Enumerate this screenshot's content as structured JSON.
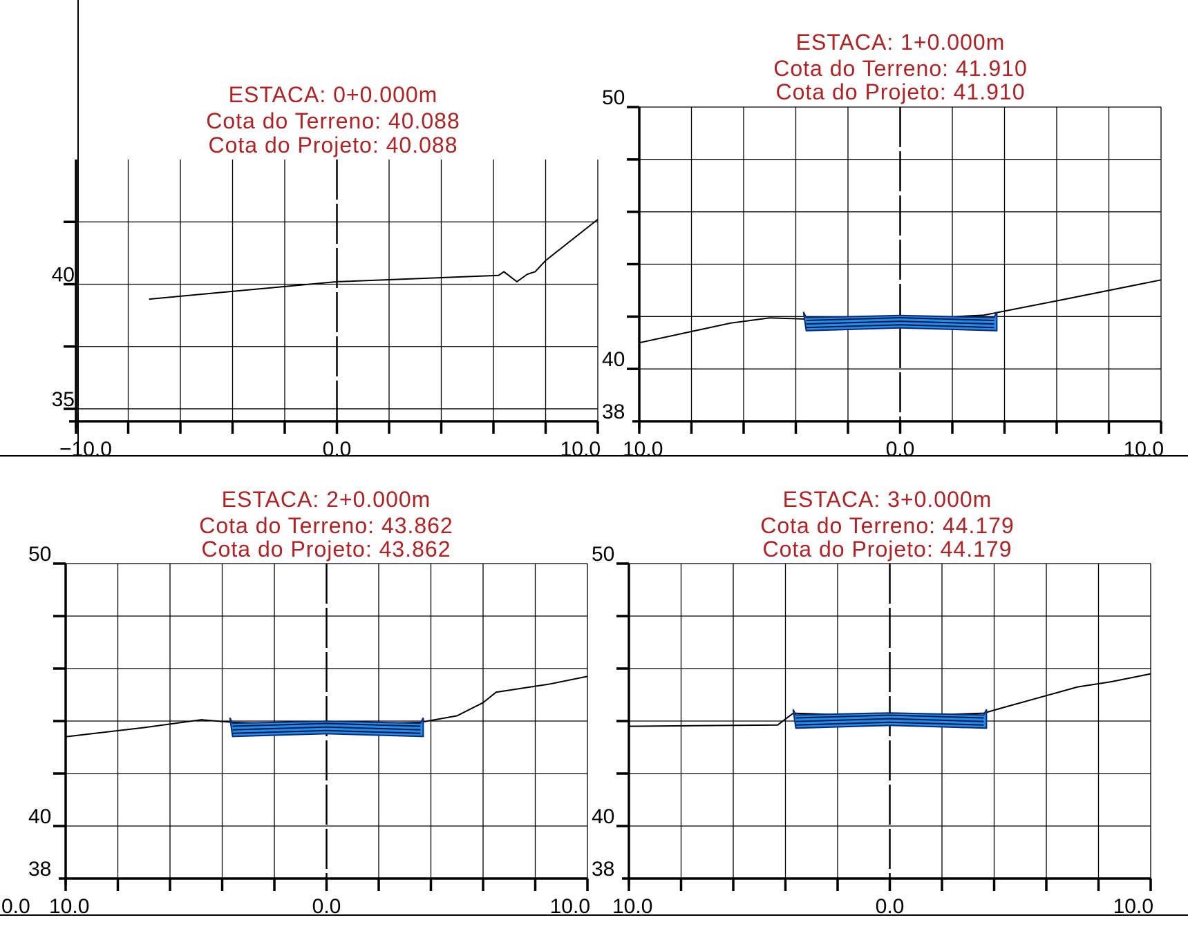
{
  "colors": {
    "title": "#b22222",
    "road_fill": "#1e8ff0",
    "road_stroke": "#0a2a7a",
    "terrain": "#000000",
    "grid": "#000000"
  },
  "chart_data": [
    {
      "type": "line",
      "title_lines": [
        "ESTACA: 0+0.000m",
        "Cota do Terreno:  40.088",
        "Cota do Projeto: 40.088"
      ],
      "x_range": [
        -10,
        10
      ],
      "y_range": [
        34.5,
        45
      ],
      "y_grid": [
        35,
        37.5,
        40,
        42.5
      ],
      "y_tick_labels": [
        {
          "value": 35,
          "text": "35"
        },
        {
          "value": 40,
          "text": "40"
        }
      ],
      "x_tick_labels": [
        {
          "value": -10,
          "text": "−10.0"
        },
        {
          "value": 0,
          "text": "0.0"
        },
        {
          "value": 10,
          "text": "10.0"
        }
      ],
      "terrain": [
        [
          -7.2,
          39.4
        ],
        [
          0,
          40.1
        ],
        [
          6.2,
          40.35
        ],
        [
          6.4,
          40.5
        ],
        [
          6.9,
          40.1
        ],
        [
          7.3,
          40.4
        ],
        [
          7.6,
          40.5
        ],
        [
          8.0,
          40.95
        ],
        [
          10,
          42.6
        ]
      ],
      "road": []
    },
    {
      "type": "line",
      "title_lines": [
        "ESTACA: 1+0.000m",
        "Cota do Terreno:  41.910",
        "Cota do Projeto: 41.910"
      ],
      "x_range": [
        -10,
        10
      ],
      "y_range": [
        38,
        50
      ],
      "y_grid": [
        40,
        42,
        44,
        46,
        48,
        50
      ],
      "y_tick_labels": [
        {
          "value": 38,
          "text": "38"
        },
        {
          "value": 40,
          "text": "40"
        },
        {
          "value": 50,
          "text": "50"
        }
      ],
      "x_tick_labels": [
        {
          "value": -10,
          "text": "10.0"
        },
        {
          "value": 0,
          "text": "0.0"
        },
        {
          "value": 10,
          "text": "10.0"
        }
      ],
      "terrain": [
        [
          -10,
          41.0
        ],
        [
          -6.5,
          41.75
        ],
        [
          -5.0,
          41.95
        ],
        [
          -3.5,
          41.9
        ],
        [
          -2.5,
          41.7
        ],
        [
          0,
          41.9
        ],
        [
          3.2,
          42.05
        ],
        [
          6.0,
          42.6
        ],
        [
          10,
          43.4
        ]
      ],
      "road": {
        "center": 41.91,
        "half_width": 3.6,
        "thickness": 0.45
      }
    },
    {
      "type": "line",
      "title_lines": [
        "ESTACA: 2+0.000m",
        "Cota do Terreno:  43.862",
        "Cota do Projeto: 43.862"
      ],
      "x_range": [
        -10,
        10
      ],
      "y_range": [
        38,
        50
      ],
      "y_grid": [
        40,
        42,
        44,
        46,
        48,
        50
      ],
      "y_tick_labels": [
        {
          "value": 38,
          "text": "38"
        },
        {
          "value": 40,
          "text": "40"
        },
        {
          "value": 50,
          "text": "50"
        }
      ],
      "x_tick_labels": [
        {
          "value": -10,
          "text": "10.0"
        },
        {
          "value": 0,
          "text": "0.0"
        },
        {
          "value": 10,
          "text": "10.0"
        }
      ],
      "terrain": [
        [
          -10,
          43.4
        ],
        [
          -7.0,
          43.75
        ],
        [
          -4.8,
          44.05
        ],
        [
          -3.6,
          43.95
        ],
        [
          0,
          43.86
        ],
        [
          3.6,
          43.95
        ],
        [
          5.0,
          44.2
        ],
        [
          6.0,
          44.7
        ],
        [
          6.5,
          45.1
        ],
        [
          8.5,
          45.4
        ],
        [
          10,
          45.7
        ]
      ],
      "road": {
        "center": 43.862,
        "half_width": 3.6,
        "thickness": 0.45
      }
    },
    {
      "type": "line",
      "title_lines": [
        "ESTACA: 3+0.000m",
        "Cota do Terreno:  44.179",
        "Cota do Projeto: 44.179"
      ],
      "x_range": [
        -10,
        10
      ],
      "y_range": [
        38,
        50
      ],
      "y_grid": [
        40,
        42,
        44,
        46,
        48,
        50
      ],
      "y_tick_labels": [
        {
          "value": 38,
          "text": "38"
        },
        {
          "value": 40,
          "text": "40"
        },
        {
          "value": 50,
          "text": "50"
        }
      ],
      "x_tick_labels": [
        {
          "value": -10,
          "text": "10.0"
        },
        {
          "value": 0,
          "text": "0.0"
        },
        {
          "value": 10,
          "text": "10.0"
        }
      ],
      "terrain": [
        [
          -10,
          43.8
        ],
        [
          -4.3,
          43.85
        ],
        [
          -3.7,
          44.3
        ],
        [
          0,
          44.18
        ],
        [
          3.6,
          44.3
        ],
        [
          4.3,
          44.5
        ],
        [
          7.2,
          45.3
        ],
        [
          8.5,
          45.5
        ],
        [
          10,
          45.8
        ]
      ],
      "road": {
        "center": 44.179,
        "half_width": 3.6,
        "thickness": 0.45
      }
    }
  ],
  "page_edge_labels": [
    {
      "text": "0.0",
      "panel": 2
    }
  ]
}
